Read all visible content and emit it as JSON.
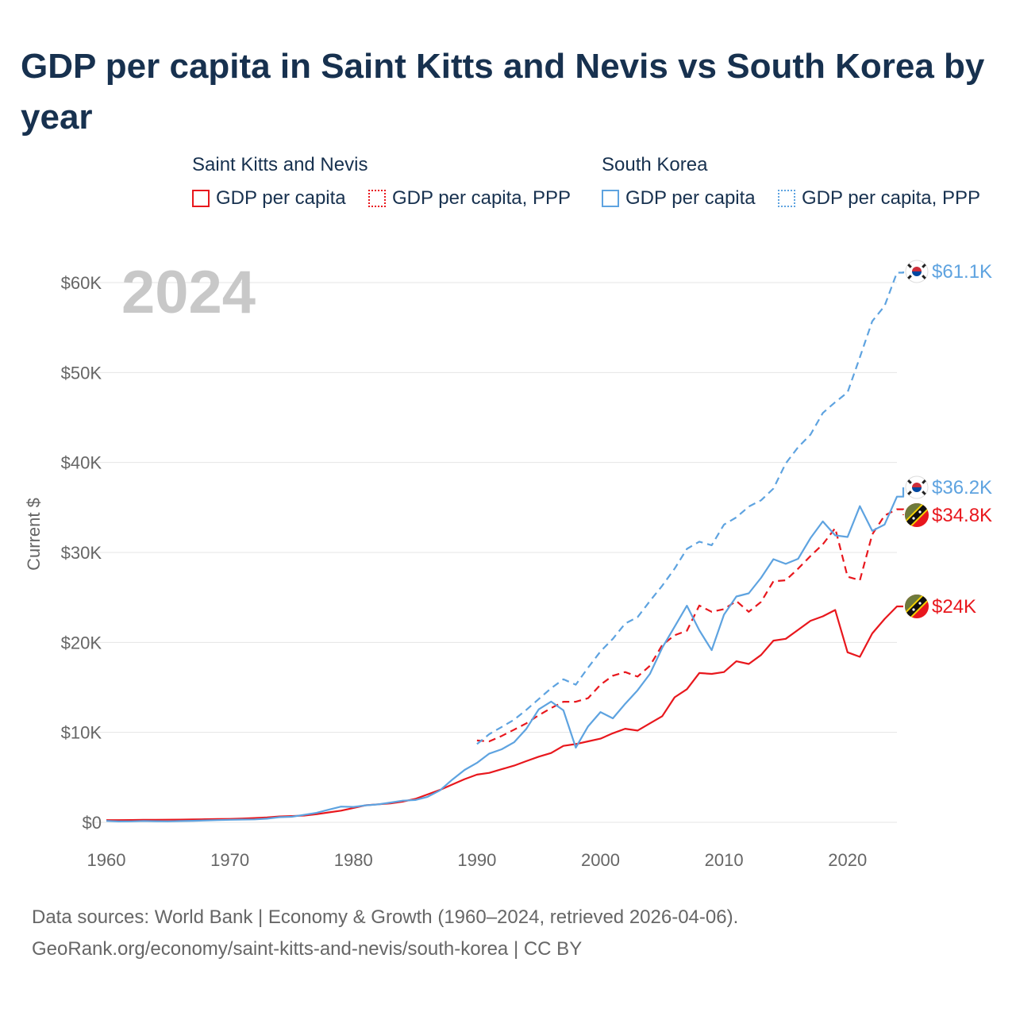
{
  "title": "GDP per capita in Saint Kitts and Nevis vs South Korea by year",
  "legend": {
    "groups": [
      {
        "title": "Saint Kitts and Nevis",
        "items": [
          "GDP per capita",
          "GDP per capita, PPP"
        ]
      },
      {
        "title": "South Korea",
        "items": [
          "GDP per capita",
          "GDP per capita, PPP"
        ]
      }
    ]
  },
  "year_watermark": "2024",
  "colors": {
    "kna": "#e8171d",
    "kor": "#5ea3e0",
    "grid": "#e5e5e5",
    "watermark": "#c8c8c8"
  },
  "chart_data": {
    "type": "line",
    "title": "GDP per capita in Saint Kitts and Nevis vs South Korea by year",
    "xlabel": "",
    "ylabel": "Current $",
    "xlim": [
      1960,
      2024
    ],
    "ylim": [
      0,
      60000
    ],
    "x_ticks": [
      1960,
      1970,
      1980,
      1990,
      2000,
      2010,
      2020
    ],
    "x_tick_labels": [
      "1960",
      "1970",
      "1980",
      "1990",
      "2000",
      "2010",
      "2020"
    ],
    "y_ticks": [
      0,
      10000,
      20000,
      30000,
      40000,
      50000,
      60000
    ],
    "y_tick_labels": [
      "$0",
      "$10K",
      "$20K",
      "$30K",
      "$40K",
      "$50K",
      "$60K"
    ],
    "grid": true,
    "series": [
      {
        "name": "Saint Kitts and Nevis — GDP per capita",
        "country": "Saint Kitts and Nevis",
        "color": "#e8171d",
        "dash": "solid",
        "end_label": "$24K",
        "x": [
          1960,
          1961,
          1962,
          1963,
          1964,
          1965,
          1966,
          1967,
          1968,
          1969,
          1970,
          1971,
          1972,
          1973,
          1974,
          1975,
          1976,
          1977,
          1978,
          1979,
          1980,
          1981,
          1982,
          1983,
          1984,
          1985,
          1986,
          1987,
          1988,
          1989,
          1990,
          1991,
          1992,
          1993,
          1994,
          1995,
          1996,
          1997,
          1998,
          1999,
          2000,
          2001,
          2002,
          2003,
          2004,
          2005,
          2006,
          2007,
          2008,
          2009,
          2010,
          2011,
          2012,
          2013,
          2014,
          2015,
          2016,
          2017,
          2018,
          2019,
          2020,
          2021,
          2022,
          2023,
          2024
        ],
        "values": [
          250,
          250,
          260,
          270,
          280,
          290,
          300,
          320,
          340,
          360,
          380,
          420,
          480,
          550,
          650,
          700,
          750,
          900,
          1100,
          1300,
          1600,
          1900,
          2000,
          2100,
          2300,
          2600,
          3100,
          3600,
          4200,
          4800,
          5300,
          5500,
          5900,
          6300,
          6800,
          7300,
          7700,
          8500,
          8700,
          9000,
          9300,
          9900,
          10400,
          10200,
          11000,
          11800,
          13900,
          14800,
          16600,
          16500,
          16700,
          17900,
          17600,
          18600,
          20200,
          20400,
          21400,
          22400,
          22900,
          23600,
          18900,
          18400,
          21000,
          22600,
          24000
        ]
      },
      {
        "name": "Saint Kitts and Nevis — GDP per capita, PPP",
        "country": "Saint Kitts and Nevis",
        "color": "#e8171d",
        "dash": "dashed",
        "end_label": "$34.8K",
        "x": [
          1990,
          1991,
          1992,
          1993,
          1994,
          1995,
          1996,
          1997,
          1998,
          1999,
          2000,
          2001,
          2002,
          2003,
          2004,
          2005,
          2006,
          2007,
          2008,
          2009,
          2010,
          2011,
          2012,
          2013,
          2014,
          2015,
          2016,
          2017,
          2018,
          2019,
          2020,
          2021,
          2022,
          2023,
          2024
        ],
        "values": [
          9100,
          9000,
          9600,
          10300,
          11000,
          11900,
          12700,
          13400,
          13400,
          13800,
          15300,
          16300,
          16700,
          16200,
          17400,
          19700,
          20800,
          21300,
          24100,
          23400,
          23700,
          24600,
          23400,
          24500,
          26800,
          26900,
          28200,
          29600,
          30900,
          32700,
          27300,
          26900,
          32000,
          34100,
          34800
        ]
      },
      {
        "name": "South Korea — GDP per capita",
        "country": "South Korea",
        "color": "#5ea3e0",
        "dash": "solid",
        "end_label": "$36.2K",
        "x": [
          1960,
          1961,
          1962,
          1963,
          1964,
          1965,
          1966,
          1967,
          1968,
          1969,
          1970,
          1971,
          1972,
          1973,
          1974,
          1975,
          1976,
          1977,
          1978,
          1979,
          1980,
          1981,
          1982,
          1983,
          1984,
          1985,
          1986,
          1987,
          1988,
          1989,
          1990,
          1991,
          1992,
          1993,
          1994,
          1995,
          1996,
          1997,
          1998,
          1999,
          2000,
          2001,
          2002,
          2003,
          2004,
          2005,
          2006,
          2007,
          2008,
          2009,
          2010,
          2011,
          2012,
          2013,
          2014,
          2015,
          2016,
          2017,
          2018,
          2019,
          2020,
          2021,
          2022,
          2023,
          2024
        ],
        "values": [
          160,
          95,
          110,
          150,
          120,
          110,
          140,
          170,
          210,
          250,
          280,
          310,
          330,
          410,
          570,
          620,
          830,
          1050,
          1400,
          1750,
          1710,
          1890,
          1990,
          2200,
          2410,
          2480,
          2830,
          3550,
          4750,
          5820,
          6610,
          7640,
          8120,
          8890,
          10390,
          12560,
          13420,
          12450,
          8300,
          10670,
          12260,
          11560,
          13170,
          14670,
          16500,
          19400,
          21740,
          24080,
          21350,
          19140,
          23080,
          25100,
          25460,
          27180,
          29250,
          28730,
          29290,
          31600,
          33450,
          31900,
          31720,
          35140,
          32400,
          33100,
          36200
        ]
      },
      {
        "name": "South Korea — GDP per capita, PPP",
        "country": "South Korea",
        "color": "#5ea3e0",
        "dash": "dashed",
        "end_label": "$61.1K",
        "x": [
          1990,
          1991,
          1992,
          1993,
          1994,
          1995,
          1996,
          1997,
          1998,
          1999,
          2000,
          2001,
          2002,
          2003,
          2004,
          2005,
          2006,
          2007,
          2008,
          2009,
          2010,
          2011,
          2012,
          2013,
          2014,
          2015,
          2016,
          2017,
          2018,
          2019,
          2020,
          2021,
          2022,
          2023,
          2024
        ],
        "values": [
          8700,
          9800,
          10600,
          11400,
          12500,
          13700,
          14900,
          15900,
          15300,
          17200,
          19000,
          20400,
          22100,
          22800,
          24600,
          26300,
          28200,
          30400,
          31200,
          30800,
          33100,
          33900,
          35100,
          35800,
          37100,
          39900,
          41700,
          43100,
          45500,
          46700,
          47800,
          51700,
          55700,
          57400,
          61100
        ]
      }
    ]
  },
  "source": {
    "line1": "Data sources: World Bank | Economy & Growth (1960–2024, retrieved 2026-04-06).",
    "line2": "GeoRank.org/economy/saint-kitts-and-nevis/south-korea | CC BY"
  }
}
